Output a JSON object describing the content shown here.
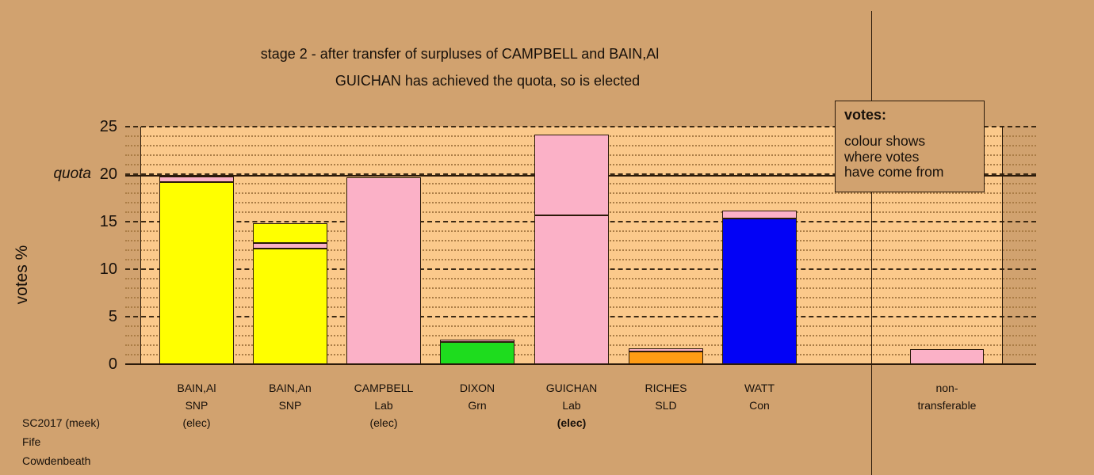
{
  "title": {
    "line1": "stage 2 - after transfer of surpluses of CAMPBELL and BAIN,Al",
    "line2": "GUICHAN has achieved the quota, so is elected"
  },
  "y_axis": {
    "label": "votes %",
    "quota_label": "quota",
    "ticks": [
      0,
      5,
      10,
      15,
      20,
      25
    ]
  },
  "legend": {
    "title": "votes:",
    "lines": [
      "colour shows",
      "where votes",
      "have come from"
    ]
  },
  "footer": {
    "lines": [
      "SC2017 (meek)",
      "Fife",
      "Cowdenbeath"
    ]
  },
  "chart_data": {
    "type": "bar",
    "stacked": true,
    "title": "stage 2 - after transfer of surpluses of CAMPBELL and BAIN,Al",
    "subtitle": "GUICHAN has achieved the quota, so is elected",
    "ylabel": "votes %",
    "ylim": [
      0,
      25
    ],
    "y_major_grid_step": 5,
    "y_minor_grid_step": 1,
    "quota": 20,
    "grid": true,
    "legend_position": "top-right",
    "palette": {
      "yellow": "#ffff00",
      "pink": "#fbb1c7",
      "green": "#1edc1e",
      "orange": "#ff9c14",
      "blue": "#0202f6"
    },
    "color_key": {
      "yellow": "SNP",
      "pink": "Lab",
      "green": "Grn",
      "orange": "SLD",
      "blue": "Con"
    },
    "bars": [
      {
        "label_lines": [
          "BAIN,Al",
          "SNP",
          "(elec)"
        ],
        "elected": true,
        "elected_this_stage": false,
        "total": 19.75,
        "segments": [
          {
            "color": "yellow",
            "from": 0,
            "to": 19.2
          },
          {
            "color": "pink",
            "from": 19.2,
            "to": 19.75
          }
        ]
      },
      {
        "label_lines": [
          "BAIN,An",
          "SNP"
        ],
        "elected": false,
        "elected_this_stage": false,
        "total": 14.8,
        "segments": [
          {
            "color": "yellow",
            "from": 0,
            "to": 12.15
          },
          {
            "color": "pink",
            "from": 12.15,
            "to": 12.75
          },
          {
            "color": "yellow",
            "from": 12.75,
            "to": 14.8
          }
        ]
      },
      {
        "label_lines": [
          "CAMPBELL",
          "Lab",
          "(elec)"
        ],
        "elected": true,
        "elected_this_stage": false,
        "total": 19.7,
        "segments": [
          {
            "color": "pink",
            "from": 0,
            "to": 19.7
          }
        ]
      },
      {
        "label_lines": [
          "DIXON",
          "Grn"
        ],
        "elected": false,
        "elected_this_stage": false,
        "total": 2.6,
        "segments": [
          {
            "color": "green",
            "from": 0,
            "to": 2.35
          },
          {
            "color": "pink",
            "from": 2.35,
            "to": 2.6
          }
        ]
      },
      {
        "label_lines": [
          "GUICHAN",
          "Lab",
          "(elec)"
        ],
        "elected": true,
        "elected_this_stage": true,
        "total": 24.2,
        "segments": [
          {
            "color": "pink",
            "from": 0,
            "to": 15.7
          },
          {
            "color": "pink",
            "from": 15.7,
            "to": 24.2
          }
        ]
      },
      {
        "label_lines": [
          "RICHES",
          "SLD"
        ],
        "elected": false,
        "elected_this_stage": false,
        "total": 1.7,
        "segments": [
          {
            "color": "orange",
            "from": 0,
            "to": 1.35
          },
          {
            "color": "pink",
            "from": 1.35,
            "to": 1.7
          }
        ]
      },
      {
        "label_lines": [
          "WATT",
          "Con"
        ],
        "elected": false,
        "elected_this_stage": false,
        "total": 16.2,
        "segments": [
          {
            "color": "blue",
            "from": 0,
            "to": 15.35
          },
          {
            "color": "pink",
            "from": 15.35,
            "to": 16.2
          }
        ]
      },
      {
        "label_lines": [
          "non-",
          "transferable"
        ],
        "non_transferable": true,
        "total": 1.55,
        "segments": [
          {
            "color": "pink",
            "from": 0,
            "to": 1.55
          }
        ]
      }
    ]
  }
}
